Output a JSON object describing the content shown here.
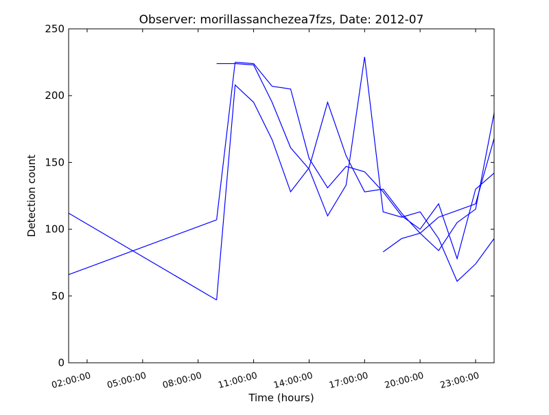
{
  "chart_data": {
    "type": "line",
    "title": "Observer: morillassanchezea7fzs, Date: 2012-07",
    "xlabel": "Time (hours)",
    "ylabel": "Detection count",
    "x_unit": "hours",
    "xlim": [
      1.0,
      24.0
    ],
    "ylim": [
      0,
      250
    ],
    "xticks": [
      {
        "value": 2,
        "label": "02:00:00"
      },
      {
        "value": 5,
        "label": "05:00:00"
      },
      {
        "value": 8,
        "label": "08:00:00"
      },
      {
        "value": 11,
        "label": "11:00:00"
      },
      {
        "value": 14,
        "label": "14:00:00"
      },
      {
        "value": 17,
        "label": "17:00:00"
      },
      {
        "value": 20,
        "label": "20:00:00"
      },
      {
        "value": 23,
        "label": "23:00:00"
      }
    ],
    "yticks": [
      0,
      50,
      100,
      150,
      200,
      250
    ],
    "grid": false,
    "line_color": "#0000ff",
    "series": [
      {
        "x": [
          1,
          9
        ],
        "y": [
          66,
          107
        ]
      },
      {
        "x": [
          1,
          9
        ],
        "y": [
          112,
          47
        ]
      },
      {
        "x": [
          9,
          10
        ],
        "y": [
          107,
          225
        ]
      },
      {
        "x": [
          9,
          10,
          11,
          12,
          13,
          14,
          15,
          16,
          17,
          18,
          19,
          20,
          21,
          22,
          23,
          24
        ],
        "y": [
          47,
          208,
          195,
          167,
          128,
          146,
          195,
          155,
          128,
          130,
          112,
          97,
          84,
          105,
          115,
          187
        ]
      },
      {
        "x": [
          9,
          10,
          11,
          12,
          13,
          14,
          15,
          16,
          17,
          18,
          19,
          20,
          21,
          22,
          23,
          24
        ],
        "y": [
          224,
          224,
          223,
          195,
          161,
          145,
          110,
          133,
          229,
          113,
          109,
          113,
          93,
          61,
          74,
          93
        ]
      },
      {
        "x": [
          10,
          11,
          12,
          13,
          14,
          15,
          16,
          17,
          18,
          19,
          20,
          21,
          22,
          23,
          24
        ],
        "y": [
          225,
          224,
          207,
          205,
          153,
          131,
          147,
          143,
          128,
          110,
          100,
          119,
          78,
          130,
          142
        ]
      },
      {
        "x": [
          18,
          19,
          20,
          21,
          22,
          23,
          24
        ],
        "y": [
          83,
          93,
          97,
          109,
          114,
          119,
          168
        ]
      }
    ]
  }
}
